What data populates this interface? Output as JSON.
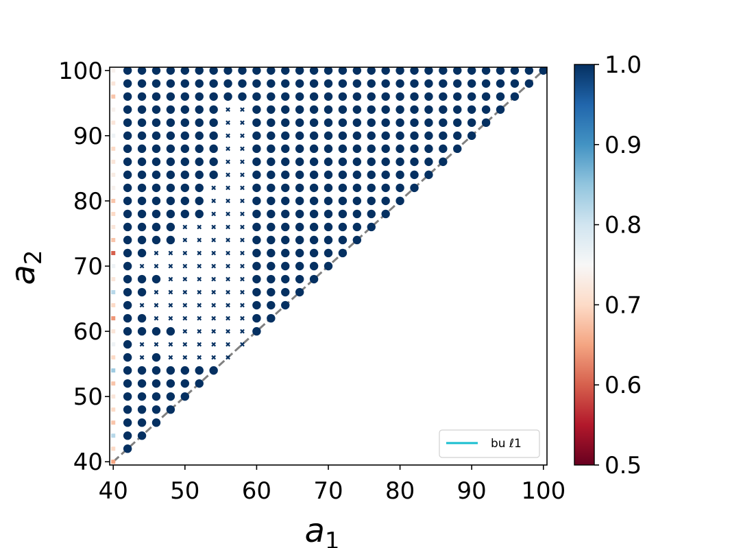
{
  "chart_data": {
    "type": "scatter",
    "title": "",
    "xlabel": "a",
    "xlabel_sub": "1",
    "ylabel": "a",
    "ylabel_sub": "2",
    "xlim": [
      39.5,
      100.5
    ],
    "ylim": [
      39.5,
      100.5
    ],
    "xticks": [
      40,
      50,
      60,
      70,
      80,
      90,
      100
    ],
    "yticks": [
      40,
      50,
      60,
      70,
      80,
      90,
      100
    ],
    "grid": false,
    "grid_step": 2,
    "diagonal_line": {
      "from": [
        40,
        40
      ],
      "to": [
        100,
        100
      ],
      "style": "dashed",
      "color": "#808080"
    },
    "legend": {
      "placement": "lower-right",
      "entries": [
        {
          "label": "bu ℓ1",
          "color": "#17becf"
        }
      ]
    },
    "colorbar": {
      "min": 0.5,
      "max": 1.0,
      "ticks": [
        "1.0",
        "0.9",
        "0.8",
        "0.7",
        "0.6",
        "0.5"
      ],
      "colormap": "RdBu"
    },
    "marker_rules": {
      "region": "a2 >= a1",
      "default_value": 1.0,
      "default_marker": "circle",
      "x_markers": [
        [
          44,
          56
        ],
        [
          44,
          58
        ],
        [
          44,
          64
        ],
        [
          44,
          70
        ],
        [
          46,
          58
        ],
        [
          46,
          62
        ],
        [
          46,
          64
        ],
        [
          46,
          66
        ],
        [
          46,
          70
        ],
        [
          46,
          72
        ],
        [
          48,
          56
        ],
        [
          48,
          58
        ],
        [
          48,
          62
        ],
        [
          48,
          64
        ],
        [
          48,
          66
        ],
        [
          48,
          68
        ],
        [
          48,
          70
        ],
        [
          48,
          72
        ],
        [
          50,
          56
        ],
        [
          50,
          58
        ],
        [
          50,
          60
        ],
        [
          50,
          62
        ],
        [
          50,
          64
        ],
        [
          50,
          66
        ],
        [
          50,
          68
        ],
        [
          50,
          70
        ],
        [
          50,
          72
        ],
        [
          50,
          74
        ],
        [
          50,
          76
        ],
        [
          52,
          56
        ],
        [
          52,
          58
        ],
        [
          52,
          60
        ],
        [
          52,
          62
        ],
        [
          52,
          64
        ],
        [
          52,
          66
        ],
        [
          52,
          68
        ],
        [
          52,
          70
        ],
        [
          52,
          72
        ],
        [
          52,
          74
        ],
        [
          52,
          76
        ],
        [
          54,
          56
        ],
        [
          54,
          58
        ],
        [
          54,
          60
        ],
        [
          54,
          62
        ],
        [
          54,
          64
        ],
        [
          54,
          66
        ],
        [
          54,
          68
        ],
        [
          54,
          70
        ],
        [
          54,
          72
        ],
        [
          54,
          74
        ],
        [
          54,
          76
        ],
        [
          54,
          78
        ],
        [
          54,
          80
        ],
        [
          54,
          82
        ],
        [
          56,
          56
        ],
        [
          56,
          58
        ],
        [
          56,
          60
        ],
        [
          56,
          62
        ],
        [
          56,
          64
        ],
        [
          56,
          66
        ],
        [
          56,
          68
        ],
        [
          56,
          70
        ],
        [
          56,
          72
        ],
        [
          56,
          74
        ],
        [
          56,
          76
        ],
        [
          56,
          78
        ],
        [
          56,
          80
        ],
        [
          56,
          82
        ],
        [
          56,
          84
        ],
        [
          56,
          86
        ],
        [
          56,
          88
        ],
        [
          56,
          90
        ],
        [
          56,
          92
        ],
        [
          56,
          94
        ],
        [
          58,
          58
        ],
        [
          58,
          60
        ],
        [
          58,
          62
        ],
        [
          58,
          64
        ],
        [
          58,
          66
        ],
        [
          58,
          68
        ],
        [
          58,
          70
        ],
        [
          58,
          72
        ],
        [
          58,
          74
        ],
        [
          58,
          76
        ],
        [
          58,
          78
        ],
        [
          58,
          80
        ],
        [
          58,
          82
        ],
        [
          58,
          84
        ],
        [
          58,
          86
        ],
        [
          58,
          88
        ],
        [
          58,
          90
        ],
        [
          58,
          92
        ],
        [
          58,
          94
        ]
      ],
      "left_column": {
        "x": 40,
        "values": {
          "40": 0.65,
          "42": 0.7,
          "44": 0.82,
          "46": 0.68,
          "48": 0.7,
          "50": 0.72,
          "52": 0.68,
          "54": 0.84,
          "56": 0.7,
          "58": 0.76,
          "60": 0.72,
          "62": 0.64,
          "64": 0.7,
          "66": 0.82,
          "68": 0.72,
          "70": 0.76,
          "72": 0.6,
          "74": 0.68,
          "76": 0.72,
          "78": 0.7,
          "80": 0.68,
          "82": 0.74,
          "84": 0.73,
          "86": 0.72,
          "88": 0.7,
          "90": 0.76,
          "92": 0.72,
          "94": 0.74,
          "96": 0.68,
          "98": 0.72,
          "100": 0.74
        }
      }
    }
  }
}
